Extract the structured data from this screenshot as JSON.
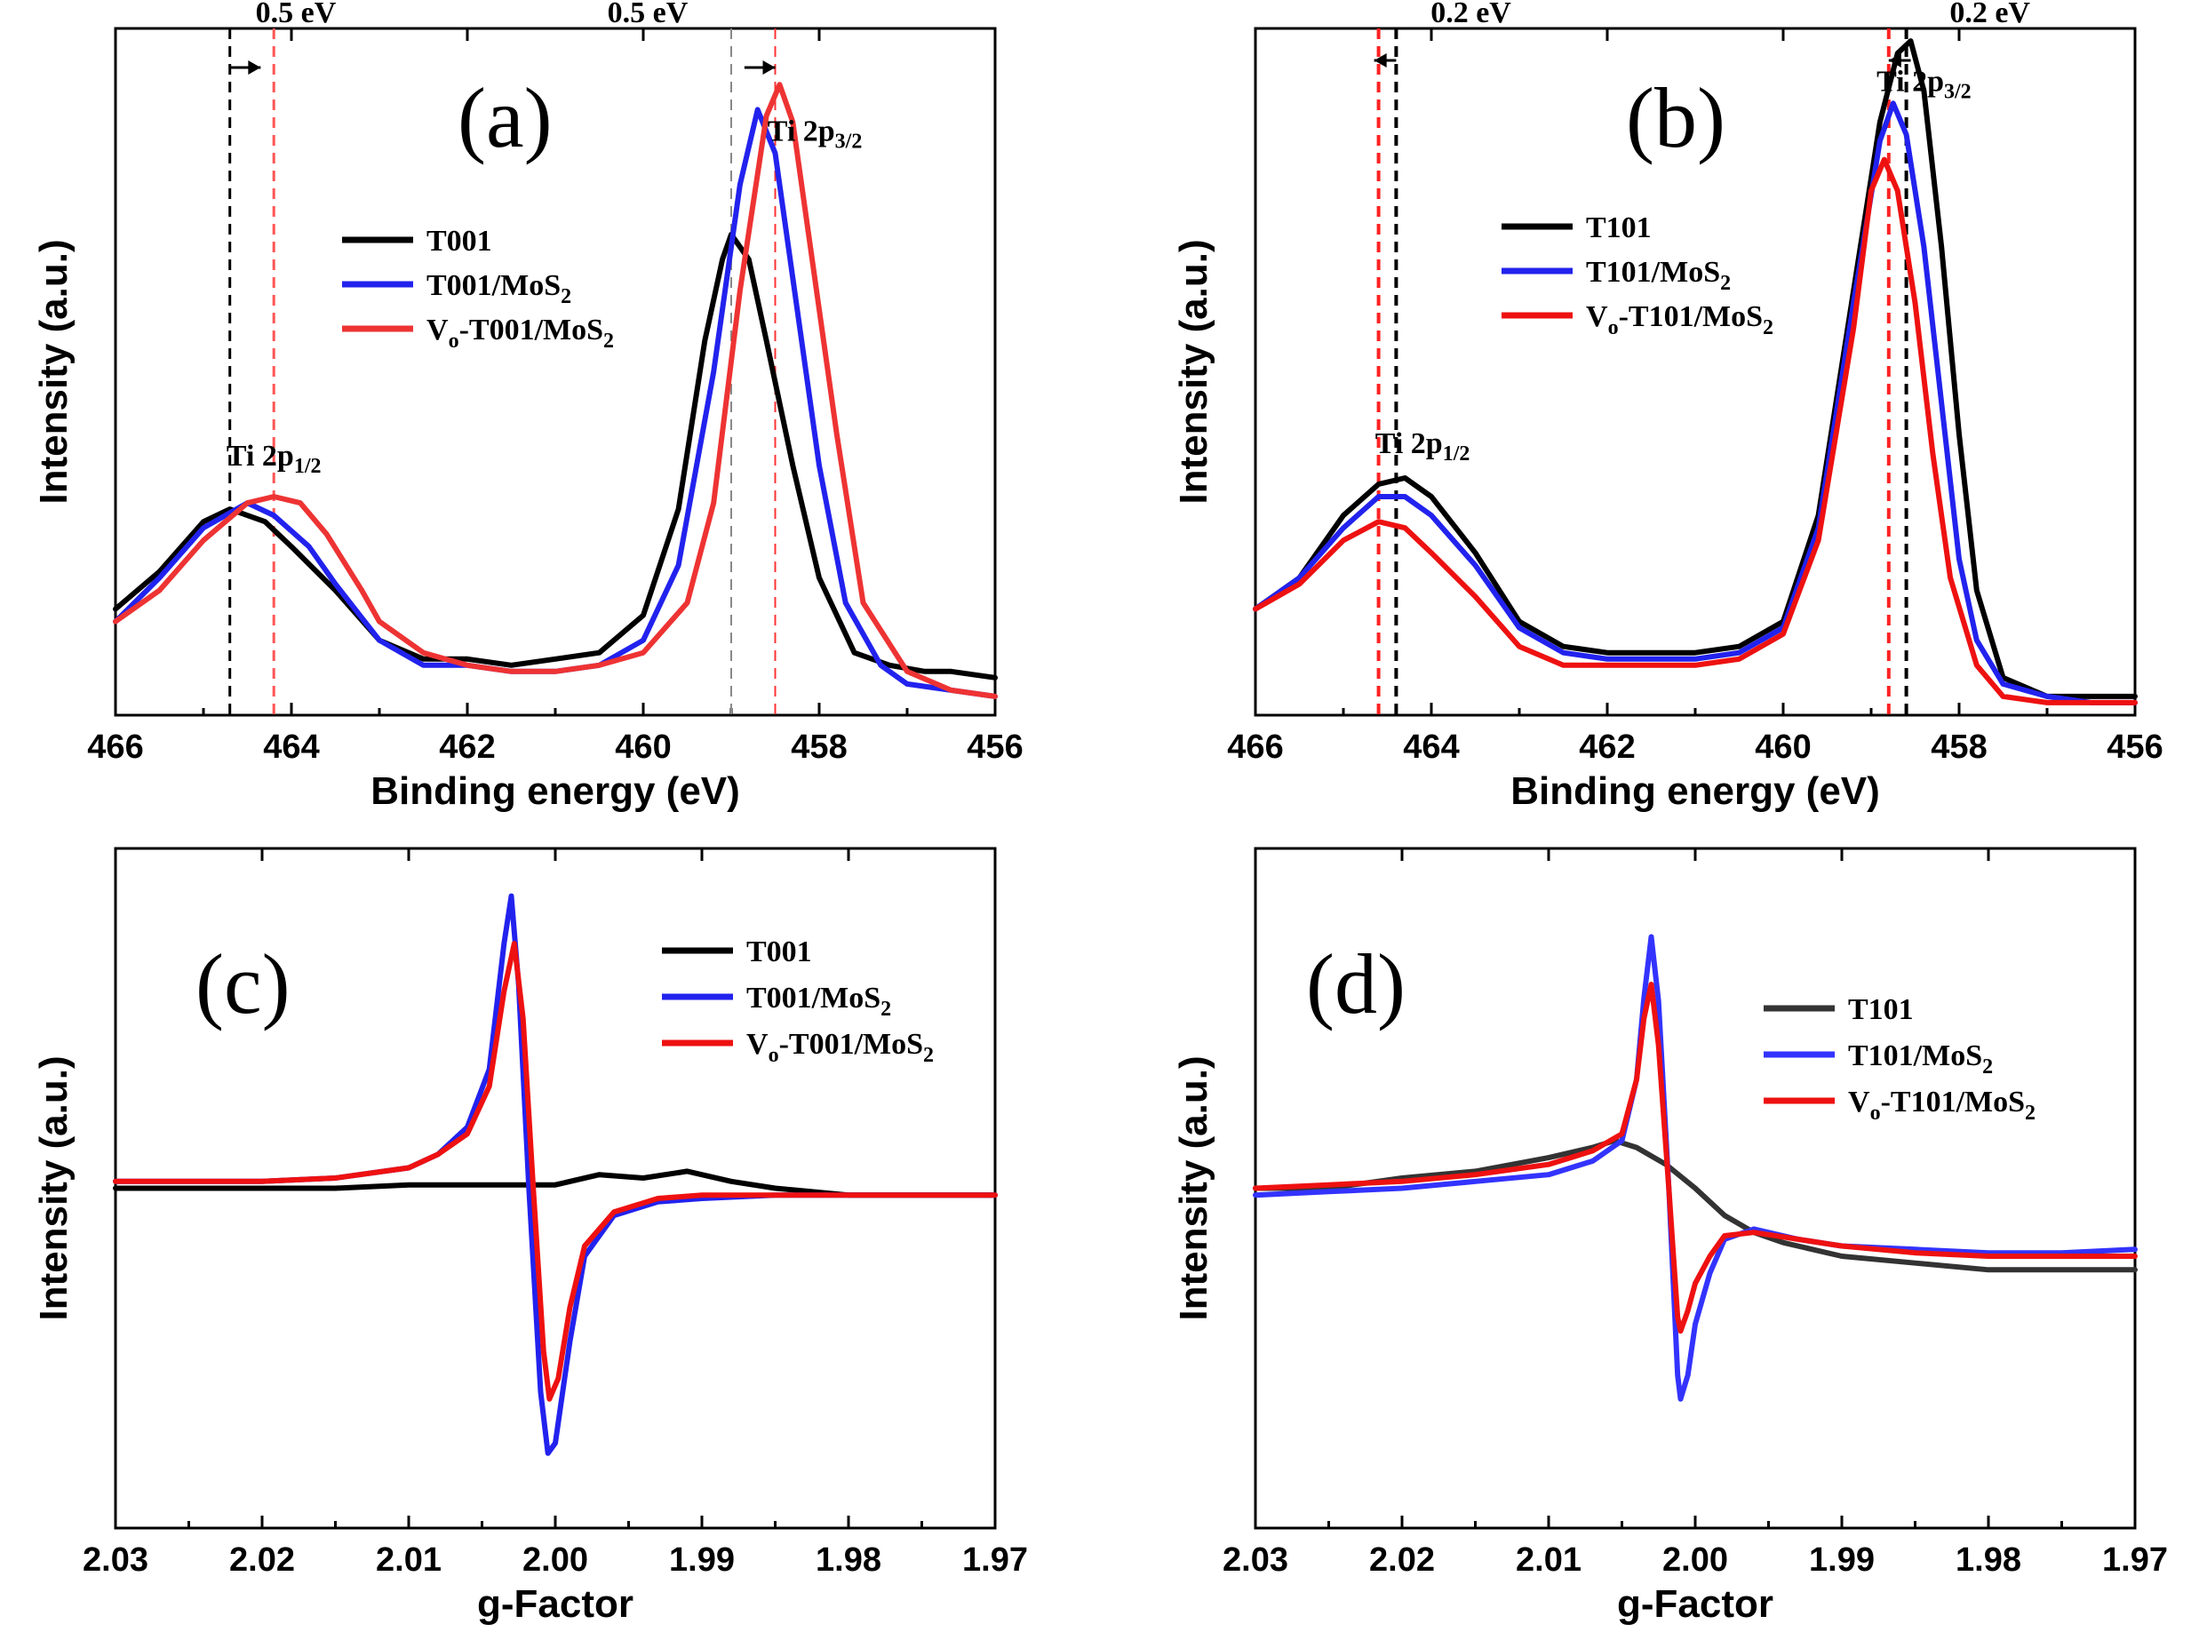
{
  "chart_data": [
    {
      "id": "a",
      "type": "line",
      "panel_label": "(a)",
      "xlabel": "Binding energy (eV)",
      "ylabel": "Intensity (a.u.)",
      "xlim": [
        466,
        456
      ],
      "ylim": [
        0,
        1.1
      ],
      "xticks": [
        "466",
        "464",
        "462",
        "460",
        "458",
        "456"
      ],
      "xtick_values": [
        466,
        464,
        462,
        460,
        458,
        456
      ],
      "legend": [
        "T001",
        "T001/MoS",
        "V",
        "-T001/MoS"
      ],
      "legend_sub": [
        "",
        "2",
        "o",
        "2"
      ],
      "series": [
        {
          "name": "T001",
          "color": "#000000",
          "x": [
            466,
            465.5,
            465,
            464.7,
            464.3,
            464,
            463.5,
            463,
            462.5,
            462,
            461.5,
            461,
            460.5,
            460,
            459.6,
            459.3,
            459.1,
            459,
            458.8,
            458.6,
            458.3,
            458,
            457.6,
            457.2,
            456.8,
            456.5,
            456
          ],
          "y": [
            0.17,
            0.23,
            0.31,
            0.33,
            0.31,
            0.27,
            0.2,
            0.12,
            0.09,
            0.09,
            0.08,
            0.09,
            0.1,
            0.16,
            0.33,
            0.6,
            0.73,
            0.77,
            0.73,
            0.6,
            0.4,
            0.22,
            0.1,
            0.08,
            0.07,
            0.07,
            0.06
          ]
        },
        {
          "name": "T001/MoS2",
          "color": "#2222ee",
          "x": [
            466,
            465.5,
            465,
            464.5,
            464.2,
            463.8,
            463.5,
            463,
            462.5,
            462,
            461.5,
            461,
            460.5,
            460,
            459.6,
            459.2,
            458.9,
            458.7,
            458.5,
            458.3,
            458,
            457.7,
            457.3,
            457,
            456.5,
            456
          ],
          "y": [
            0.15,
            0.22,
            0.3,
            0.34,
            0.32,
            0.27,
            0.21,
            0.12,
            0.08,
            0.08,
            0.07,
            0.07,
            0.08,
            0.12,
            0.24,
            0.55,
            0.85,
            0.97,
            0.9,
            0.7,
            0.4,
            0.18,
            0.08,
            0.05,
            0.04,
            0.03
          ]
        },
        {
          "name": "Vo-T001/MoS2",
          "color": "#ee3333",
          "x": [
            466,
            465.5,
            465,
            464.5,
            464.2,
            463.9,
            463.6,
            463.2,
            463,
            462.5,
            462,
            461.5,
            461,
            460.5,
            460,
            459.5,
            459.2,
            458.9,
            458.6,
            458.45,
            458.3,
            458.1,
            457.8,
            457.5,
            457,
            456.5,
            456
          ],
          "y": [
            0.15,
            0.2,
            0.28,
            0.34,
            0.35,
            0.34,
            0.29,
            0.2,
            0.15,
            0.1,
            0.08,
            0.07,
            0.07,
            0.08,
            0.1,
            0.18,
            0.34,
            0.68,
            0.96,
            1.01,
            0.95,
            0.75,
            0.45,
            0.18,
            0.07,
            0.04,
            0.03
          ]
        }
      ],
      "vlines": [
        {
          "x": 464.7,
          "color": "#000000",
          "width": 3
        },
        {
          "x": 464.2,
          "color": "#ff5555",
          "width": 3
        },
        {
          "x": 459.0,
          "color": "#888888",
          "width": 2
        },
        {
          "x": 458.5,
          "color": "#ff3333",
          "width": 2
        }
      ],
      "annotations": [
        {
          "text": "0.5 eV",
          "x": 463.95,
          "y": 1.11
        },
        {
          "text": "0.5 eV",
          "x": 459.95,
          "y": 1.11
        },
        {
          "text": "Ti 2p",
          "sub": "1/2",
          "x": 464.2,
          "y": 0.4
        },
        {
          "text": "Ti 2p",
          "sub": "3/2",
          "x": 458.05,
          "y": 0.92
        }
      ]
    },
    {
      "id": "b",
      "type": "line",
      "panel_label": "(b)",
      "xlabel": "Binding energy (eV)",
      "ylabel": "Intensity (a.u.)",
      "xlim": [
        466,
        456
      ],
      "ylim": [
        0,
        1.1
      ],
      "xticks": [
        "466",
        "464",
        "462",
        "460",
        "458",
        "456"
      ],
      "xtick_values": [
        466,
        464,
        462,
        460,
        458,
        456
      ],
      "legend": [
        "T101",
        "T101/MoS",
        "V",
        "-T101/MoS"
      ],
      "legend_sub": [
        "",
        "2",
        "o",
        "2"
      ],
      "series": [
        {
          "name": "T101",
          "color": "#000000",
          "x": [
            466,
            465.5,
            465,
            464.6,
            464.3,
            464,
            463.5,
            463,
            462.5,
            462,
            461.5,
            461,
            460.5,
            460,
            459.6,
            459.2,
            458.9,
            458.7,
            458.55,
            458.4,
            458.2,
            458,
            457.8,
            457.5,
            457,
            456.5,
            456
          ],
          "y": [
            0.17,
            0.22,
            0.32,
            0.37,
            0.38,
            0.35,
            0.26,
            0.15,
            0.11,
            0.1,
            0.1,
            0.1,
            0.11,
            0.15,
            0.32,
            0.68,
            0.95,
            1.06,
            1.08,
            1.0,
            0.75,
            0.45,
            0.2,
            0.06,
            0.03,
            0.03,
            0.03
          ]
        },
        {
          "name": "T101/MoS2",
          "color": "#2222ee",
          "x": [
            466,
            465.5,
            465,
            464.6,
            464.3,
            464,
            463.5,
            463,
            462.5,
            462,
            461.5,
            461,
            460.5,
            460,
            459.6,
            459.2,
            458.9,
            458.75,
            458.6,
            458.4,
            458.2,
            458,
            457.8,
            457.5,
            457,
            456.5,
            456
          ],
          "y": [
            0.17,
            0.22,
            0.3,
            0.35,
            0.35,
            0.32,
            0.24,
            0.14,
            0.1,
            0.09,
            0.09,
            0.09,
            0.1,
            0.14,
            0.3,
            0.66,
            0.92,
            0.98,
            0.93,
            0.75,
            0.5,
            0.25,
            0.12,
            0.05,
            0.03,
            0.02,
            0.02
          ]
        },
        {
          "name": "Vo-T101/MoS2",
          "color": "#ee1111",
          "x": [
            466,
            465.5,
            465,
            464.6,
            464.3,
            464,
            463.5,
            463,
            462.5,
            462,
            461.5,
            461,
            460.5,
            460,
            459.6,
            459.2,
            459,
            458.85,
            458.7,
            458.5,
            458.3,
            458.1,
            457.8,
            457.5,
            457,
            456.5,
            456
          ],
          "y": [
            0.17,
            0.21,
            0.28,
            0.31,
            0.3,
            0.26,
            0.19,
            0.11,
            0.08,
            0.08,
            0.08,
            0.08,
            0.09,
            0.13,
            0.28,
            0.62,
            0.84,
            0.89,
            0.84,
            0.66,
            0.42,
            0.22,
            0.08,
            0.03,
            0.02,
            0.02,
            0.02
          ]
        }
      ],
      "vlines": [
        {
          "x": 464.6,
          "color": "#ff2222",
          "width": 4
        },
        {
          "x": 464.4,
          "color": "#000000",
          "width": 4
        },
        {
          "x": 458.8,
          "color": "#ff2222",
          "width": 4
        },
        {
          "x": 458.6,
          "color": "#000000",
          "width": 4
        }
      ],
      "annotations": [
        {
          "text": "0.2 eV",
          "x": 463.55,
          "y": 1.11
        },
        {
          "text": "0.2 eV",
          "x": 457.65,
          "y": 1.11
        },
        {
          "text": "Ti 2p",
          "sub": "1/2",
          "x": 464.1,
          "y": 0.42
        },
        {
          "text": "Ti 2p",
          "sub": "3/2",
          "x": 458.4,
          "y": 1.0
        }
      ]
    },
    {
      "id": "c",
      "type": "line",
      "panel_label": "(c)",
      "xlabel": "g-Factor",
      "ylabel": "Intensity (a.u.)",
      "xlim": [
        2.03,
        1.97
      ],
      "ylim": [
        -1.0,
        1.0
      ],
      "xticks": [
        "2.03",
        "2.02",
        "2.01",
        "2.00",
        "1.99",
        "1.98",
        "1.97"
      ],
      "xtick_values": [
        2.03,
        2.02,
        2.01,
        2.0,
        1.99,
        1.98,
        1.97
      ],
      "legend": [
        "T001",
        "T001/MoS",
        "V",
        "-T001/MoS"
      ],
      "legend_sub": [
        "",
        "2",
        "o",
        "2"
      ],
      "series": [
        {
          "name": "T001",
          "color": "#000000",
          "x": [
            2.03,
            2.025,
            2.02,
            2.015,
            2.01,
            2.005,
            2.0,
            1.997,
            1.994,
            1.991,
            1.988,
            1.985,
            1.98,
            1.975,
            1.97
          ],
          "y": [
            0.0,
            0.0,
            0.0,
            0.0,
            0.01,
            0.01,
            0.01,
            0.04,
            0.03,
            0.05,
            0.02,
            0.0,
            -0.02,
            -0.02,
            -0.02
          ]
        },
        {
          "name": "T001/MoS2",
          "color": "#2222ee",
          "x": [
            2.03,
            2.025,
            2.02,
            2.015,
            2.01,
            2.008,
            2.006,
            2.0045,
            2.0035,
            2.003,
            2.0025,
            2.0018,
            2.001,
            2.0005,
            2.0,
            1.999,
            1.998,
            1.996,
            1.993,
            1.99,
            1.985,
            1.98,
            1.975,
            1.97
          ],
          "y": [
            0.02,
            0.02,
            0.02,
            0.03,
            0.06,
            0.1,
            0.18,
            0.35,
            0.72,
            0.86,
            0.6,
            0.0,
            -0.6,
            -0.78,
            -0.75,
            -0.45,
            -0.2,
            -0.08,
            -0.04,
            -0.03,
            -0.02,
            -0.02,
            -0.02,
            -0.02
          ]
        },
        {
          "name": "Vo-T001/MoS2",
          "color": "#ee1111",
          "x": [
            2.03,
            2.025,
            2.02,
            2.015,
            2.01,
            2.008,
            2.006,
            2.0045,
            2.0035,
            2.0028,
            2.0022,
            2.0015,
            2.0008,
            2.0004,
            1.9998,
            1.999,
            1.998,
            1.996,
            1.993,
            1.99,
            1.985,
            1.98,
            1.975,
            1.97
          ],
          "y": [
            0.02,
            0.02,
            0.02,
            0.03,
            0.06,
            0.1,
            0.16,
            0.3,
            0.58,
            0.72,
            0.5,
            0.0,
            -0.48,
            -0.62,
            -0.56,
            -0.35,
            -0.17,
            -0.07,
            -0.03,
            -0.02,
            -0.02,
            -0.02,
            -0.02,
            -0.02
          ]
        }
      ],
      "vlines": [],
      "annotations": []
    },
    {
      "id": "d",
      "type": "line",
      "panel_label": "(d)",
      "xlabel": "g-Factor",
      "ylabel": "Intensity (a.u.)",
      "xlim": [
        2.03,
        1.97
      ],
      "ylim": [
        -1.0,
        1.0
      ],
      "xticks": [
        "2.03",
        "2.02",
        "2.01",
        "2.00",
        "1.99",
        "1.98",
        "1.97"
      ],
      "xtick_values": [
        2.03,
        2.02,
        2.01,
        2.0,
        1.99,
        1.98,
        1.97
      ],
      "legend": [
        "T101",
        "T101/MoS",
        "V",
        "-T101/MoS"
      ],
      "legend_sub": [
        "",
        "2",
        "o",
        "2"
      ],
      "series": [
        {
          "name": "T101",
          "color": "#333333",
          "x": [
            2.03,
            2.025,
            2.02,
            2.015,
            2.01,
            2.007,
            2.0055,
            2.004,
            2.002,
            2.0,
            1.998,
            1.996,
            1.994,
            1.99,
            1.985,
            1.98,
            1.975,
            1.97
          ],
          "y": [
            0.0,
            0.0,
            0.03,
            0.05,
            0.09,
            0.12,
            0.14,
            0.12,
            0.07,
            0.0,
            -0.08,
            -0.13,
            -0.16,
            -0.2,
            -0.22,
            -0.24,
            -0.24,
            -0.24
          ]
        },
        {
          "name": "T101/MoS2",
          "color": "#3333ff",
          "x": [
            2.03,
            2.025,
            2.02,
            2.015,
            2.01,
            2.007,
            2.005,
            2.004,
            2.0035,
            2.003,
            2.0025,
            2.0018,
            2.0012,
            2.001,
            2.0005,
            2.0,
            1.999,
            1.998,
            1.996,
            1.993,
            1.99,
            1.985,
            1.98,
            1.975,
            1.97
          ],
          "y": [
            -0.02,
            -0.01,
            0.0,
            0.02,
            0.04,
            0.08,
            0.14,
            0.32,
            0.56,
            0.74,
            0.55,
            0.0,
            -0.55,
            -0.62,
            -0.55,
            -0.4,
            -0.25,
            -0.15,
            -0.12,
            -0.15,
            -0.17,
            -0.18,
            -0.19,
            -0.19,
            -0.18
          ]
        },
        {
          "name": "Vo-T101/MoS2",
          "color": "#ee1111",
          "x": [
            2.03,
            2.025,
            2.02,
            2.015,
            2.01,
            2.007,
            2.005,
            2.004,
            2.0035,
            2.003,
            2.0025,
            2.0018,
            2.0012,
            2.001,
            2.0005,
            2.0,
            1.999,
            1.998,
            1.996,
            1.993,
            1.99,
            1.985,
            1.98,
            1.975,
            1.97
          ],
          "y": [
            0.0,
            0.01,
            0.02,
            0.04,
            0.07,
            0.11,
            0.16,
            0.32,
            0.5,
            0.6,
            0.42,
            0.0,
            -0.38,
            -0.42,
            -0.36,
            -0.28,
            -0.2,
            -0.14,
            -0.13,
            -0.15,
            -0.17,
            -0.19,
            -0.2,
            -0.2,
            -0.2
          ]
        }
      ],
      "vlines": [],
      "annotations": []
    }
  ]
}
